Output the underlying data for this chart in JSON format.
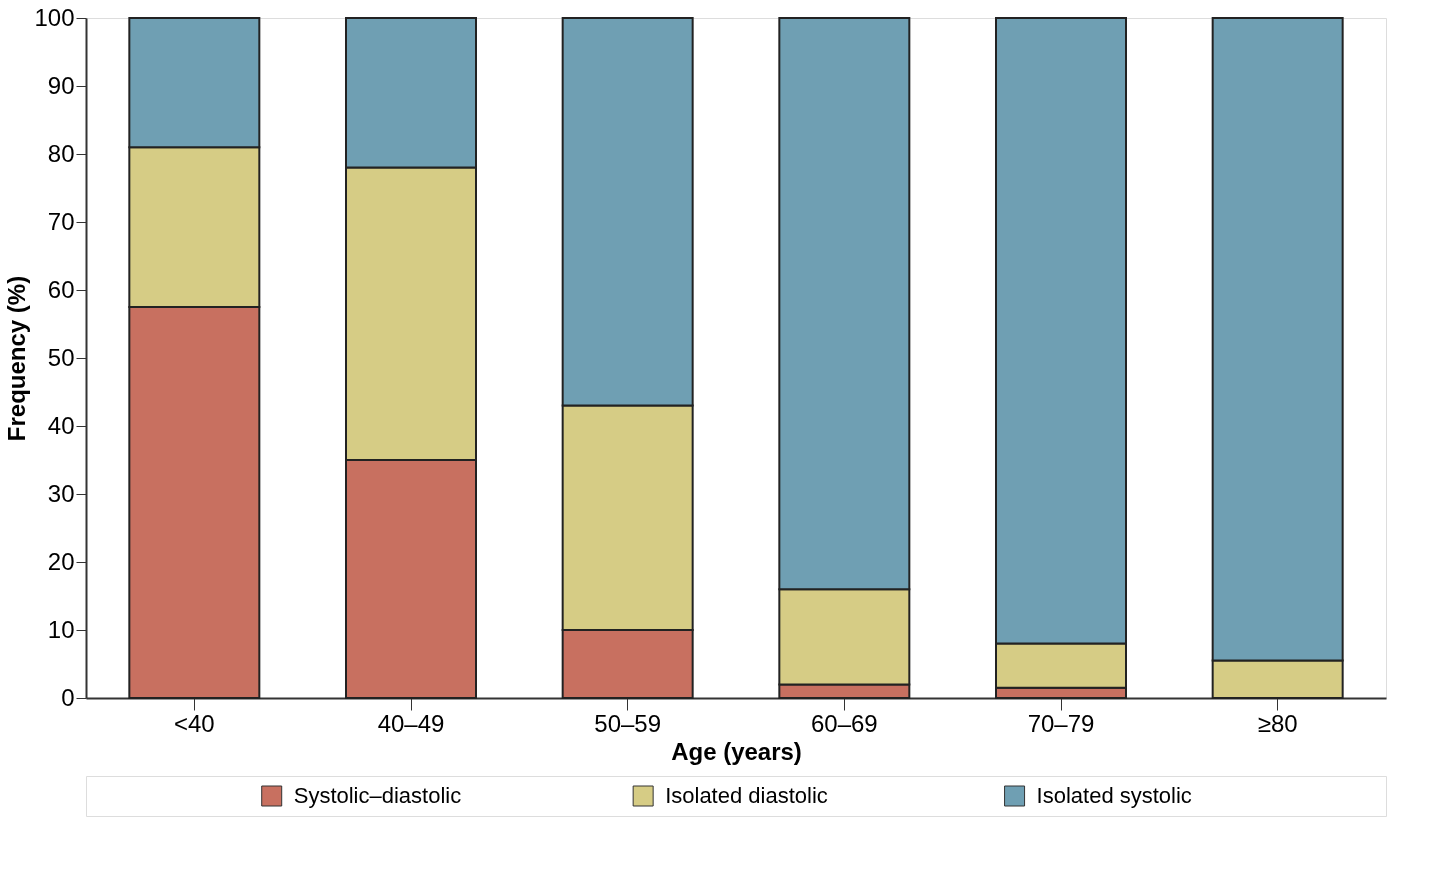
{
  "chart_data": {
    "type": "bar",
    "stacked": true,
    "xlabel": "Age (years)",
    "ylabel": "Frequency (%)",
    "categories": [
      "<40",
      "40–49",
      "50–59",
      "60–69",
      "70–79",
      "≥80"
    ],
    "series": [
      {
        "name": "Systolic–diastolic",
        "color": "#c87060",
        "values": [
          57.5,
          35,
          10,
          2,
          1.5,
          0
        ]
      },
      {
        "name": "Isolated diastolic",
        "color": "#d6cc85",
        "values": [
          23.5,
          43,
          33,
          14,
          6.5,
          5.5
        ]
      },
      {
        "name": "Isolated systolic",
        "color": "#6f9fb3",
        "values": [
          19,
          22,
          57,
          84,
          92,
          94.5
        ]
      }
    ],
    "ylim": [
      0,
      100
    ],
    "yticks": [
      0,
      10,
      20,
      30,
      40,
      50,
      60,
      70,
      80,
      90,
      100
    ],
    "grid": false,
    "legend": "bottom"
  }
}
